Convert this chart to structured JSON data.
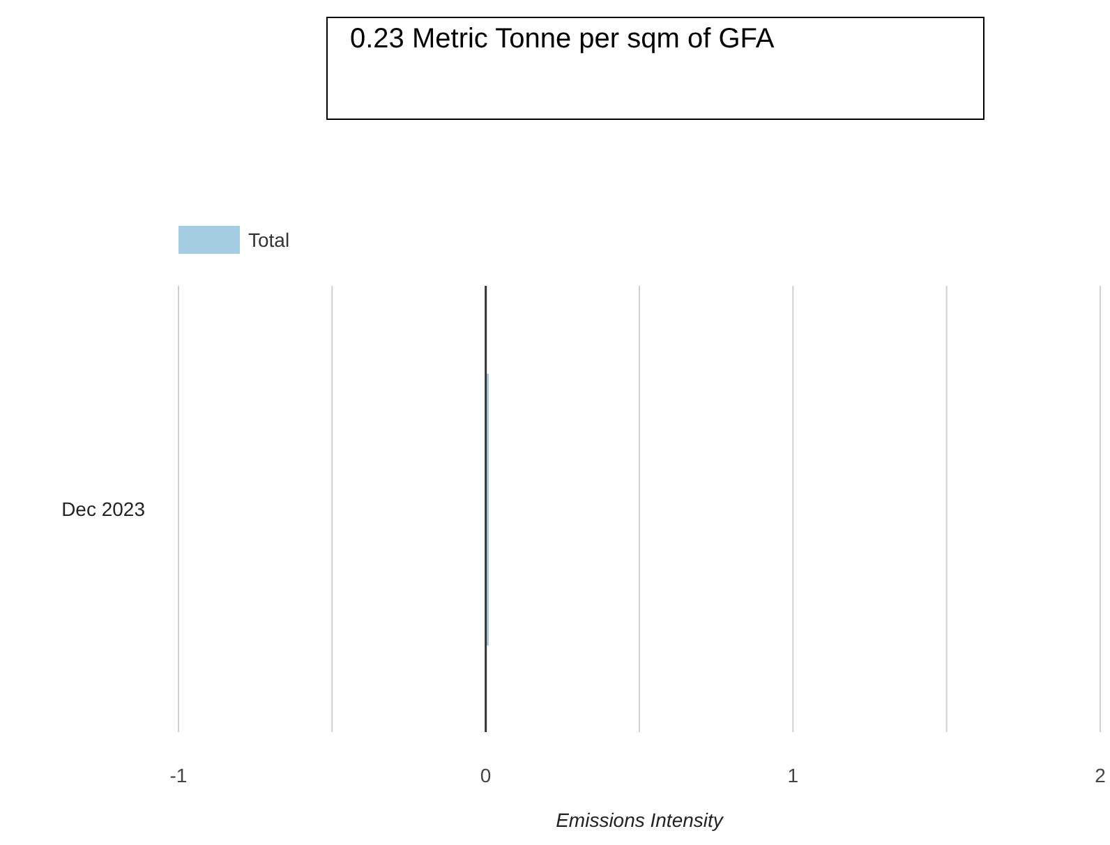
{
  "chart_data": {
    "type": "bar",
    "orientation": "horizontal",
    "annotations": [
      "0.23 Metric Tonne per sqm of GFA"
    ],
    "xlabel": "Emissions Intensity",
    "categories": [
      "Dec 2023"
    ],
    "series": [
      {
        "name": "Total",
        "color": "#a6cee3",
        "values": [
          0.01
        ]
      }
    ],
    "xlim": [
      -1,
      2
    ],
    "xticks": [
      -1,
      {
        "value": -0.5,
        "label": null
      },
      0,
      {
        "value": 0.5,
        "label": null
      },
      1,
      {
        "value": 1.5,
        "label": null
      },
      2
    ],
    "ref_lines": [
      {
        "axis": "x",
        "value": 0,
        "color": "#333333"
      }
    ],
    "grid": "x",
    "legend": "top left"
  }
}
